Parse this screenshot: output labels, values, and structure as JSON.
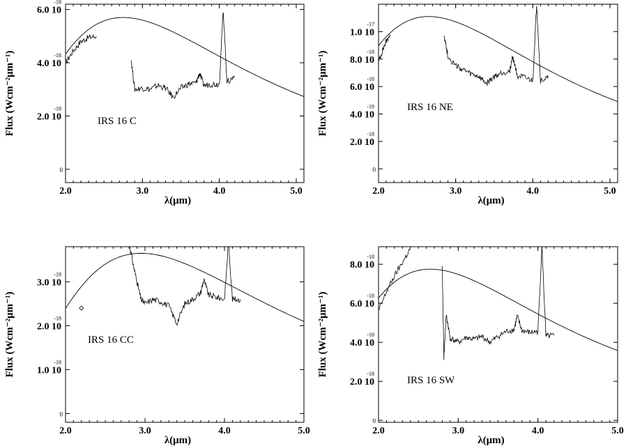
{
  "chart_data": [
    {
      "type": "line",
      "panel_label": "IRS 16 C",
      "xlabel": "λ(μm)",
      "ylabel": "Flux (Wcm⁻²μm⁻¹)",
      "xlim": [
        2.0,
        5.1
      ],
      "ylim": [
        -0.5,
        6.2
      ],
      "x_ticks": [
        "2.0",
        "3.0",
        "4.0",
        "5.0"
      ],
      "y_ticks": [
        {
          "value": 0,
          "label": "0",
          "exponent": ""
        },
        {
          "value": 2.0,
          "label": "2.0 10",
          "exponent": "-18"
        },
        {
          "value": 4.0,
          "label": "4.0 10",
          "exponent": "-18"
        },
        {
          "value": 6.0,
          "label": "6.0 10",
          "exponent": "-18"
        }
      ],
      "blackbody": {
        "peak_wavelength": 2.75,
        "peak_flux": 5.7
      },
      "series": [
        {
          "x": [
            2.0,
            2.1,
            2.2,
            2.3,
            2.4
          ],
          "y": [
            4.0,
            4.45,
            4.8,
            4.95,
            5.0
          ]
        },
        {
          "x": [
            2.85,
            2.9,
            3.0,
            3.1,
            3.2,
            3.3,
            3.4,
            3.5,
            3.6,
            3.7,
            3.74,
            3.8,
            3.9,
            4.0,
            4.05,
            4.1,
            4.2
          ],
          "y": [
            4.2,
            3.0,
            3.05,
            3.0,
            3.15,
            3.05,
            2.7,
            3.05,
            3.2,
            3.25,
            3.6,
            3.15,
            3.2,
            3.2,
            6.0,
            3.25,
            3.5
          ]
        }
      ]
    },
    {
      "type": "line",
      "panel_label": "IRS 16 NE",
      "xlabel": "λ(μm)",
      "ylabel": "Flux (Wcm⁻²μm⁻¹)",
      "xlim": [
        2.0,
        5.1
      ],
      "ylim": [
        -0.1,
        1.2
      ],
      "x_ticks": [
        "2.0",
        "3.0",
        "4.0",
        "5.0"
      ],
      "y_ticks": [
        {
          "value": 0,
          "label": "0",
          "exponent": ""
        },
        {
          "value": 0.2,
          "label": "2.0 10",
          "exponent": "-18"
        },
        {
          "value": 0.4,
          "label": "4.0 10",
          "exponent": "-18"
        },
        {
          "value": 0.6,
          "label": "6.0 10",
          "exponent": "-18"
        },
        {
          "value": 0.8,
          "label": "8.0 10",
          "exponent": "-18"
        },
        {
          "value": 1.0,
          "label": "1.0 10",
          "exponent": "-17"
        }
      ],
      "blackbody": {
        "peak_wavelength": 2.65,
        "peak_flux": 1.11
      },
      "series": [
        {
          "x": [
            2.0,
            2.05,
            2.1,
            2.15
          ],
          "y": [
            0.78,
            0.86,
            0.93,
            0.98
          ]
        },
        {
          "x": [
            2.85,
            2.9,
            3.0,
            3.1,
            3.2,
            3.3,
            3.4,
            3.5,
            3.6,
            3.7,
            3.74,
            3.8,
            3.9,
            4.0,
            4.05,
            4.1,
            4.2
          ],
          "y": [
            0.98,
            0.82,
            0.75,
            0.72,
            0.69,
            0.67,
            0.62,
            0.67,
            0.7,
            0.71,
            0.82,
            0.68,
            0.66,
            0.64,
            1.2,
            0.64,
            0.66
          ]
        }
      ]
    },
    {
      "type": "line",
      "panel_label": "IRS 16 CC",
      "xlabel": "λ(μm)",
      "ylabel": "Flux (Wcm⁻²μm⁻¹)",
      "xlim": [
        2.0,
        5.0
      ],
      "ylim": [
        -0.2,
        3.8
      ],
      "x_ticks": [
        "2.0",
        "3.0",
        "4.0",
        "5.0"
      ],
      "y_ticks": [
        {
          "value": 0,
          "label": "0",
          "exponent": ""
        },
        {
          "value": 1.0,
          "label": "1.0 10",
          "exponent": "-18"
        },
        {
          "value": 2.0,
          "label": "2.0 10",
          "exponent": "-18"
        },
        {
          "value": 3.0,
          "label": "3.0 10",
          "exponent": "-18"
        }
      ],
      "blackbody": {
        "peak_wavelength": 2.95,
        "peak_flux": 3.65
      },
      "markers": [
        {
          "x": 2.2,
          "y": 2.4
        }
      ],
      "series": [
        {
          "x": [
            2.8,
            2.85,
            2.9,
            2.95,
            3.0,
            3.1,
            3.2,
            3.3,
            3.4,
            3.5,
            3.6,
            3.7,
            3.74,
            3.8,
            3.9,
            4.0,
            4.05,
            4.1,
            4.2
          ],
          "y": [
            3.9,
            3.4,
            3.0,
            2.6,
            2.5,
            2.6,
            2.55,
            2.45,
            2.05,
            2.5,
            2.6,
            2.75,
            3.05,
            2.7,
            2.65,
            2.6,
            3.9,
            2.6,
            2.6
          ]
        }
      ]
    },
    {
      "type": "line",
      "panel_label": "IRS 16 SW",
      "xlabel": "λ(μm)",
      "ylabel": "Flux (Wcm⁻²μm⁻¹)",
      "xlim": [
        2.0,
        5.0
      ],
      "ylim": [
        -0.1,
        8.9
      ],
      "x_ticks": [
        "2.0",
        "3.0",
        "4.0",
        "5.0"
      ],
      "y_ticks": [
        {
          "value": 0,
          "label": "0",
          "exponent": ""
        },
        {
          "value": 2.0,
          "label": "2.0 10",
          "exponent": "-18"
        },
        {
          "value": 4.0,
          "label": "4.0 10",
          "exponent": "-18"
        },
        {
          "value": 6.0,
          "label": "6.0 10",
          "exponent": "-18"
        },
        {
          "value": 8.0,
          "label": "8.0 10",
          "exponent": "-18"
        }
      ],
      "blackbody": {
        "peak_wavelength": 2.65,
        "peak_flux": 7.75
      },
      "series": [
        {
          "x": [
            2.0,
            2.1,
            2.2,
            2.3,
            2.4
          ],
          "y": [
            5.6,
            6.6,
            7.4,
            8.1,
            8.8
          ]
        },
        {
          "x": [
            2.8,
            2.82,
            2.85,
            2.9,
            3.0,
            3.1,
            3.2,
            3.3,
            3.4,
            3.5,
            3.6,
            3.7,
            3.74,
            3.8,
            3.9,
            4.0,
            4.05,
            4.1,
            4.2
          ],
          "y": [
            7.8,
            3.2,
            5.4,
            4.2,
            4.0,
            4.25,
            4.15,
            4.3,
            4.0,
            4.3,
            4.55,
            4.65,
            5.35,
            4.6,
            4.5,
            4.55,
            8.9,
            4.3,
            4.35
          ]
        }
      ]
    }
  ]
}
